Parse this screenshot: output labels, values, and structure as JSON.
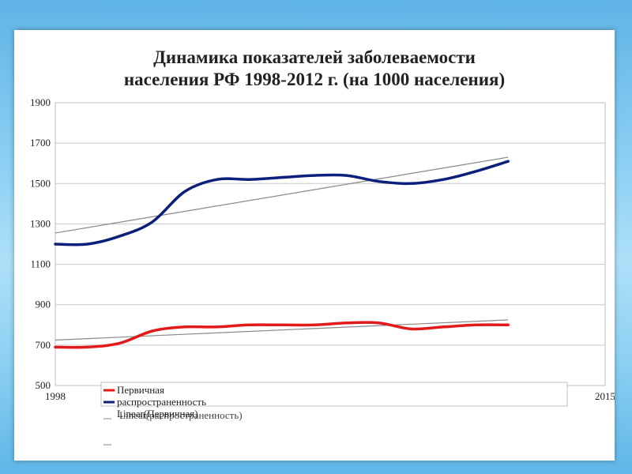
{
  "chart_data": {
    "type": "line",
    "title": "Динамика показателей заболеваемости",
    "subtitle": "населения РФ 1998-2012 г. (на 1000 населения)",
    "ylim": [
      500,
      1900
    ],
    "y_ticks": [
      "1900",
      "1700",
      "1500",
      "1300",
      "1100",
      "900",
      "700",
      "500"
    ],
    "x_tick_labels": [
      "1998",
      "2015"
    ],
    "xlim": [
      1998,
      2015
    ],
    "grid": "horizontal",
    "x": [
      1998,
      1999,
      2000,
      2001,
      2002,
      2003,
      2004,
      2005,
      2006,
      2007,
      2008,
      2009,
      2010,
      2011,
      2012
    ],
    "series": [
      {
        "name": "Первичная",
        "color": "#e31a1c",
        "values": [
          690,
          690,
          710,
          770,
          790,
          790,
          800,
          800,
          800,
          810,
          810,
          780,
          790,
          800,
          800
        ]
      },
      {
        "name": "распространенность",
        "color": "#0c1f7a",
        "values": [
          1200,
          1200,
          1240,
          1310,
          1460,
          1520,
          1520,
          1530,
          1540,
          1540,
          1510,
          1500,
          1520,
          1560,
          1610
        ]
      }
    ],
    "trendlines": [
      {
        "label": "Linear (Первичная)",
        "color": "#888888",
        "start": [
          1998,
          725
        ],
        "end": [
          2012,
          825
        ]
      },
      {
        "label": "Linear (распространенность)",
        "color": "#888888",
        "start": [
          1998,
          1255
        ],
        "end": [
          2012,
          1630
        ]
      }
    ],
    "legend": {
      "placement": "bottom",
      "entries": [
        {
          "label": "Первичная",
          "color": "#e31a1c"
        },
        {
          "label": "распространенность",
          "color": "#0c1f7a"
        },
        {
          "label": "Linear(Первичная)",
          "color": "#888888"
        },
        {
          "label": "Linear(распространенность)",
          "color": "#888888"
        }
      ]
    }
  }
}
